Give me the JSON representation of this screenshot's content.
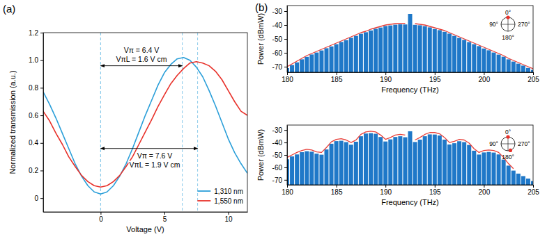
{
  "chart_data": [
    {
      "type": "line",
      "title": "(a)",
      "xlabel": "Voltage (V)",
      "ylabel": "Normalized transmission (a.u.)",
      "x": [
        -4.5,
        -4,
        -3.5,
        -3,
        -2.5,
        -2,
        -1.5,
        -1,
        -0.5,
        0,
        0.5,
        1,
        1.5,
        2,
        2.5,
        3,
        3.5,
        4,
        4.5,
        5,
        5.5,
        6,
        6.5,
        7,
        7.5,
        8,
        8.5,
        9,
        9.5,
        10,
        10.5,
        11,
        11.5
      ],
      "xlim": [
        -4.5,
        11.5
      ],
      "xticks": [
        0,
        5,
        10
      ],
      "ylim": [
        -0.1,
        1.2
      ],
      "yticks": [
        0,
        0.2,
        0.4,
        0.6,
        0.8,
        {
          "value": 1,
          "label": "1.0"
        },
        1.2
      ],
      "legend": "lower right",
      "series": [
        {
          "name": "1,310 nm",
          "color": "#2b9fd9",
          "values": [
            0.77,
            0.68,
            0.58,
            0.47,
            0.36,
            0.25,
            0.16,
            0.09,
            0.045,
            0.03,
            0.045,
            0.09,
            0.16,
            0.25,
            0.36,
            0.48,
            0.6,
            0.71,
            0.82,
            0.91,
            0.97,
            1.01,
            1.02,
            1.0,
            0.95,
            0.88,
            0.78,
            0.67,
            0.55,
            0.43,
            0.33,
            0.25,
            0.18
          ]
        },
        {
          "name": "1,550 nm",
          "color": "#e8312a",
          "values": [
            0.63,
            0.56,
            0.47,
            0.39,
            0.3,
            0.23,
            0.165,
            0.12,
            0.09,
            0.08,
            0.09,
            0.12,
            0.165,
            0.23,
            0.3,
            0.39,
            0.48,
            0.57,
            0.665,
            0.75,
            0.83,
            0.89,
            0.94,
            0.98,
            0.99,
            0.98,
            0.96,
            0.92,
            0.86,
            0.78,
            0.7,
            0.63,
            0.6
          ]
        }
      ],
      "annotations": [
        {
          "text": [
            "Vπ = 6.4 V",
            "VπL = 1.6 V cm"
          ],
          "x": [
            0,
            6.4
          ],
          "y": 0.96
        },
        {
          "text": [
            "Vπ = 7.6 V",
            "VπL = 1.9 V cm"
          ],
          "x": [
            0,
            7.6
          ],
          "y": 0.36
        }
      ]
    },
    {
      "type": "line",
      "title": "(b)",
      "xlabel": "Frequency (THz)",
      "ylabel": "Power (dBmW)",
      "x": [
        180,
        180.5,
        181,
        181.5,
        182,
        182.5,
        183,
        183.5,
        184,
        184.5,
        185,
        185.5,
        186,
        186.5,
        187,
        187.5,
        188,
        188.5,
        189,
        189.5,
        190,
        190.5,
        191,
        191.5,
        192,
        192.5,
        193,
        193.5,
        194,
        194.5,
        195,
        195.5,
        196,
        196.5,
        197,
        197.5,
        198,
        198.5,
        199,
        199.5,
        200,
        200.5,
        201,
        201.5,
        202,
        202.5,
        203,
        203.5,
        204,
        204.5,
        205
      ],
      "xlim": [
        180,
        205
      ],
      "xticks": [
        180,
        185,
        190,
        195,
        200,
        205
      ],
      "ylim": [
        -74,
        -26
      ],
      "yticks": [
        -70,
        -60,
        -50,
        -40,
        -30
      ],
      "series": [
        {
          "type": "bar",
          "color": "#1f78c8",
          "values": [
            -71,
            -68.8,
            -66.9,
            -64.7,
            -62.9,
            -61.2,
            -59.8,
            -58.3,
            -56.7,
            -55.4,
            -53.8,
            -52.2,
            -50.9,
            -49.2,
            -47.8,
            -46.3,
            -45.2,
            -43.9,
            -42.7,
            -41.8,
            -40.7,
            -40.3,
            -39.8,
            -39.5,
            -39.6,
            -32,
            -39.9,
            -40.2,
            -40.8,
            -41.7,
            -42.9,
            -43.7,
            -44.9,
            -46.2,
            -47.8,
            -49.3,
            -50.7,
            -52.3,
            -53.8,
            -55.2,
            -56.9,
            -58.2,
            -59.8,
            -61.3,
            -62.8,
            -64.7,
            -66.3,
            -67.8,
            -69.2,
            -70.9,
            -72.3
          ]
        },
        {
          "type": "line",
          "color": "#e8403a",
          "values": [
            -70,
            -68,
            -66,
            -64,
            -62,
            -60.5,
            -59,
            -57.5,
            -56,
            -54.5,
            -53,
            -51.5,
            -50,
            -48.5,
            -47,
            -45.5,
            -44.5,
            -43,
            -42,
            -41,
            -40,
            -39.5,
            -39,
            -38.8,
            -38.8,
            null,
            -39,
            -39.5,
            -40,
            -41,
            -42,
            -43,
            -44,
            -45.5,
            -47,
            -48.5,
            -50,
            -51.5,
            -53,
            -54.5,
            -56,
            -57.5,
            -59,
            -60.5,
            -62,
            -64,
            -65.5,
            -67,
            -68.5,
            -70,
            -71.5
          ]
        }
      ],
      "inset": {
        "ticks": [
          {
            "value": 0,
            "label": "0°"
          },
          {
            "value": 90,
            "label": "90°"
          },
          {
            "value": 180,
            "label": "180°"
          },
          {
            "value": 270,
            "label": "270°"
          }
        ],
        "points": [
          0
        ],
        "color": "#e8312a"
      }
    },
    {
      "type": "line",
      "xlabel": "Frequency (THz)",
      "ylabel": "Power (dBmW)",
      "x": [
        180,
        180.5,
        181,
        181.5,
        182,
        182.5,
        183,
        183.5,
        184,
        184.5,
        185,
        185.5,
        186,
        186.5,
        187,
        187.5,
        188,
        188.5,
        189,
        189.5,
        190,
        190.5,
        191,
        191.5,
        192,
        192.5,
        193,
        193.5,
        194,
        194.5,
        195,
        195.5,
        196,
        196.5,
        197,
        197.5,
        198,
        198.5,
        199,
        199.5,
        200,
        200.5,
        201,
        201.5,
        202,
        202.5,
        203,
        203.5,
        204,
        204.5,
        205
      ],
      "xlim": [
        180,
        205
      ],
      "xticks": [
        180,
        185,
        190,
        195,
        200,
        205
      ],
      "ylim": [
        -74,
        -26
      ],
      "yticks": [
        -70,
        -60,
        -50,
        -40,
        -30
      ],
      "series": [
        {
          "type": "bar",
          "color": "#1f78c8",
          "values": [
            -53.5,
            -51.2,
            -49.6,
            -47.8,
            -47,
            -47.4,
            -49,
            -49.8,
            -45.6,
            -41,
            -38.9,
            -38.6,
            -39.7,
            -41.8,
            -39.4,
            -35,
            -32.8,
            -32.5,
            -33,
            -35.6,
            -39.2,
            -37.5,
            -35.6,
            -35,
            -35.8,
            -31,
            -39.6,
            -37.7,
            -35,
            -33.5,
            -33.6,
            -34.4,
            -37.7,
            -41.6,
            -40.6,
            -39,
            -39.7,
            -42,
            -46.6,
            -49.7,
            -48,
            -47.6,
            -48.1,
            -49.6,
            -53.7,
            -58.6,
            -62.6,
            -65,
            -67,
            -69,
            -71
          ]
        },
        {
          "type": "line",
          "color": "#e8403a",
          "values": [
            -52,
            -50,
            -48,
            -46.5,
            -45.5,
            -46,
            -47.5,
            -48,
            -44,
            -39.5,
            -37.5,
            -37,
            -38,
            -40,
            -38,
            -33.5,
            -31.5,
            -31,
            -31.5,
            -34,
            -37.5,
            -36,
            -34,
            -33.5,
            -34,
            null,
            -38,
            -36,
            -33.5,
            -32,
            -32,
            -33,
            -36,
            -40,
            -39,
            -37.5,
            -38,
            -40.5,
            -45,
            -48,
            -46.5,
            -46,
            -46.5,
            -48,
            -52,
            -57,
            -61,
            null,
            null,
            null,
            null
          ]
        }
      ],
      "inset": {
        "ticks": [
          {
            "value": 0,
            "label": "0°"
          },
          {
            "value": 90,
            "label": "90°"
          },
          {
            "value": 180,
            "label": "180°"
          },
          {
            "value": 270,
            "label": "270°"
          }
        ],
        "points": [
          0,
          200
        ],
        "color": "#e8312a"
      }
    }
  ]
}
